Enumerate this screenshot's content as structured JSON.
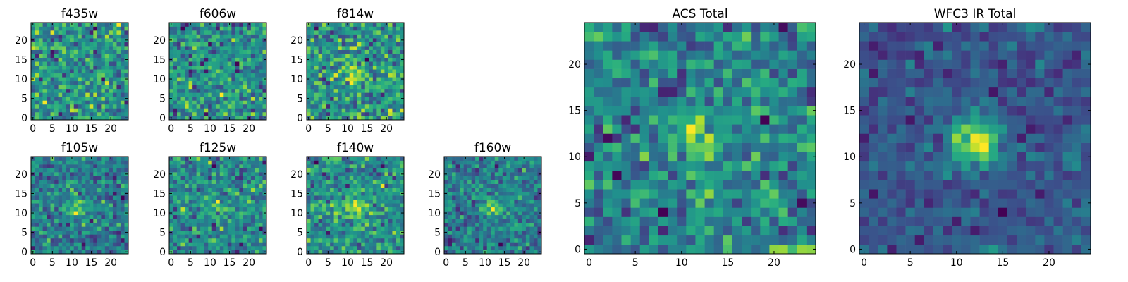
{
  "figure": {
    "background": "#ffffff",
    "colormap": "viridis"
  },
  "chart_data": [
    {
      "type": "heatmap",
      "title": "f435w",
      "grid_size": 25,
      "center_peak": 0.05,
      "noise": 1.0,
      "seed": 11,
      "xticks": [
        "0",
        "5",
        "10",
        "15",
        "20"
      ],
      "yticks": [
        "0",
        "5",
        "10",
        "15",
        "20"
      ],
      "xlim": [
        -0.5,
        24.5
      ],
      "ylim": [
        -0.5,
        24.5
      ]
    },
    {
      "type": "heatmap",
      "title": "f606w",
      "grid_size": 25,
      "center_peak": 0.25,
      "noise": 1.0,
      "seed": 23,
      "xticks": [
        "0",
        "5",
        "10",
        "15",
        "20"
      ],
      "yticks": [
        "0",
        "5",
        "10",
        "15",
        "20"
      ],
      "xlim": [
        -0.5,
        24.5
      ],
      "ylim": [
        -0.5,
        24.5
      ]
    },
    {
      "type": "heatmap",
      "title": "f814w",
      "grid_size": 25,
      "center_peak": 0.55,
      "noise": 0.9,
      "seed": 37,
      "xticks": [
        "0",
        "5",
        "10",
        "15",
        "20"
      ],
      "yticks": [
        "0",
        "5",
        "10",
        "15",
        "20"
      ],
      "xlim": [
        -0.5,
        24.5
      ],
      "ylim": [
        -0.5,
        24.5
      ]
    },
    {
      "type": "heatmap",
      "title": "f105w",
      "grid_size": 25,
      "center_peak": 0.7,
      "noise": 0.6,
      "seed": 41,
      "xticks": [
        "0",
        "5",
        "10",
        "15",
        "20"
      ],
      "yticks": [
        "0",
        "5",
        "10",
        "15",
        "20"
      ],
      "xlim": [
        -0.5,
        24.5
      ],
      "ylim": [
        -0.5,
        24.5
      ]
    },
    {
      "type": "heatmap",
      "title": "f125w",
      "grid_size": 25,
      "center_peak": 0.45,
      "noise": 0.9,
      "seed": 53,
      "xticks": [
        "0",
        "5",
        "10",
        "15",
        "20"
      ],
      "yticks": [
        "0",
        "5",
        "10",
        "15",
        "20"
      ],
      "xlim": [
        -0.5,
        24.5
      ],
      "ylim": [
        -0.5,
        24.5
      ]
    },
    {
      "type": "heatmap",
      "title": "f140w",
      "grid_size": 25,
      "center_peak": 0.85,
      "noise": 0.75,
      "seed": 67,
      "xticks": [
        "0",
        "5",
        "10",
        "15",
        "20"
      ],
      "yticks": [
        "0",
        "5",
        "10",
        "15",
        "20"
      ],
      "xlim": [
        -0.5,
        24.5
      ],
      "ylim": [
        -0.5,
        24.5
      ]
    },
    {
      "type": "heatmap",
      "title": "f160w",
      "grid_size": 25,
      "center_peak": 0.95,
      "noise": 0.7,
      "seed": 79,
      "xticks": [
        "0",
        "5",
        "10",
        "15",
        "20"
      ],
      "yticks": [
        "0",
        "5",
        "10",
        "15",
        "20"
      ],
      "xlim": [
        -0.5,
        24.5
      ],
      "ylim": [
        -0.5,
        24.5
      ]
    },
    {
      "type": "heatmap",
      "title": "ACS Total",
      "grid_size": 25,
      "center_peak": 0.55,
      "noise": 0.55,
      "seed": 83,
      "xticks": [
        "0",
        "5",
        "10",
        "15",
        "20"
      ],
      "yticks": [
        "0",
        "5",
        "10",
        "15",
        "20"
      ],
      "xlim": [
        -0.5,
        24.5
      ],
      "ylim": [
        -0.5,
        24.5
      ]
    },
    {
      "type": "heatmap",
      "title": "WFC3 IR Total",
      "grid_size": 25,
      "center_peak": 1.4,
      "noise": 0.45,
      "seed": 97,
      "xticks": [
        "0",
        "5",
        "10",
        "15",
        "20"
      ],
      "yticks": [
        "0",
        "5",
        "10",
        "15",
        "20"
      ],
      "xlim": [
        -0.5,
        24.5
      ],
      "ylim": [
        -0.5,
        24.5
      ]
    }
  ]
}
